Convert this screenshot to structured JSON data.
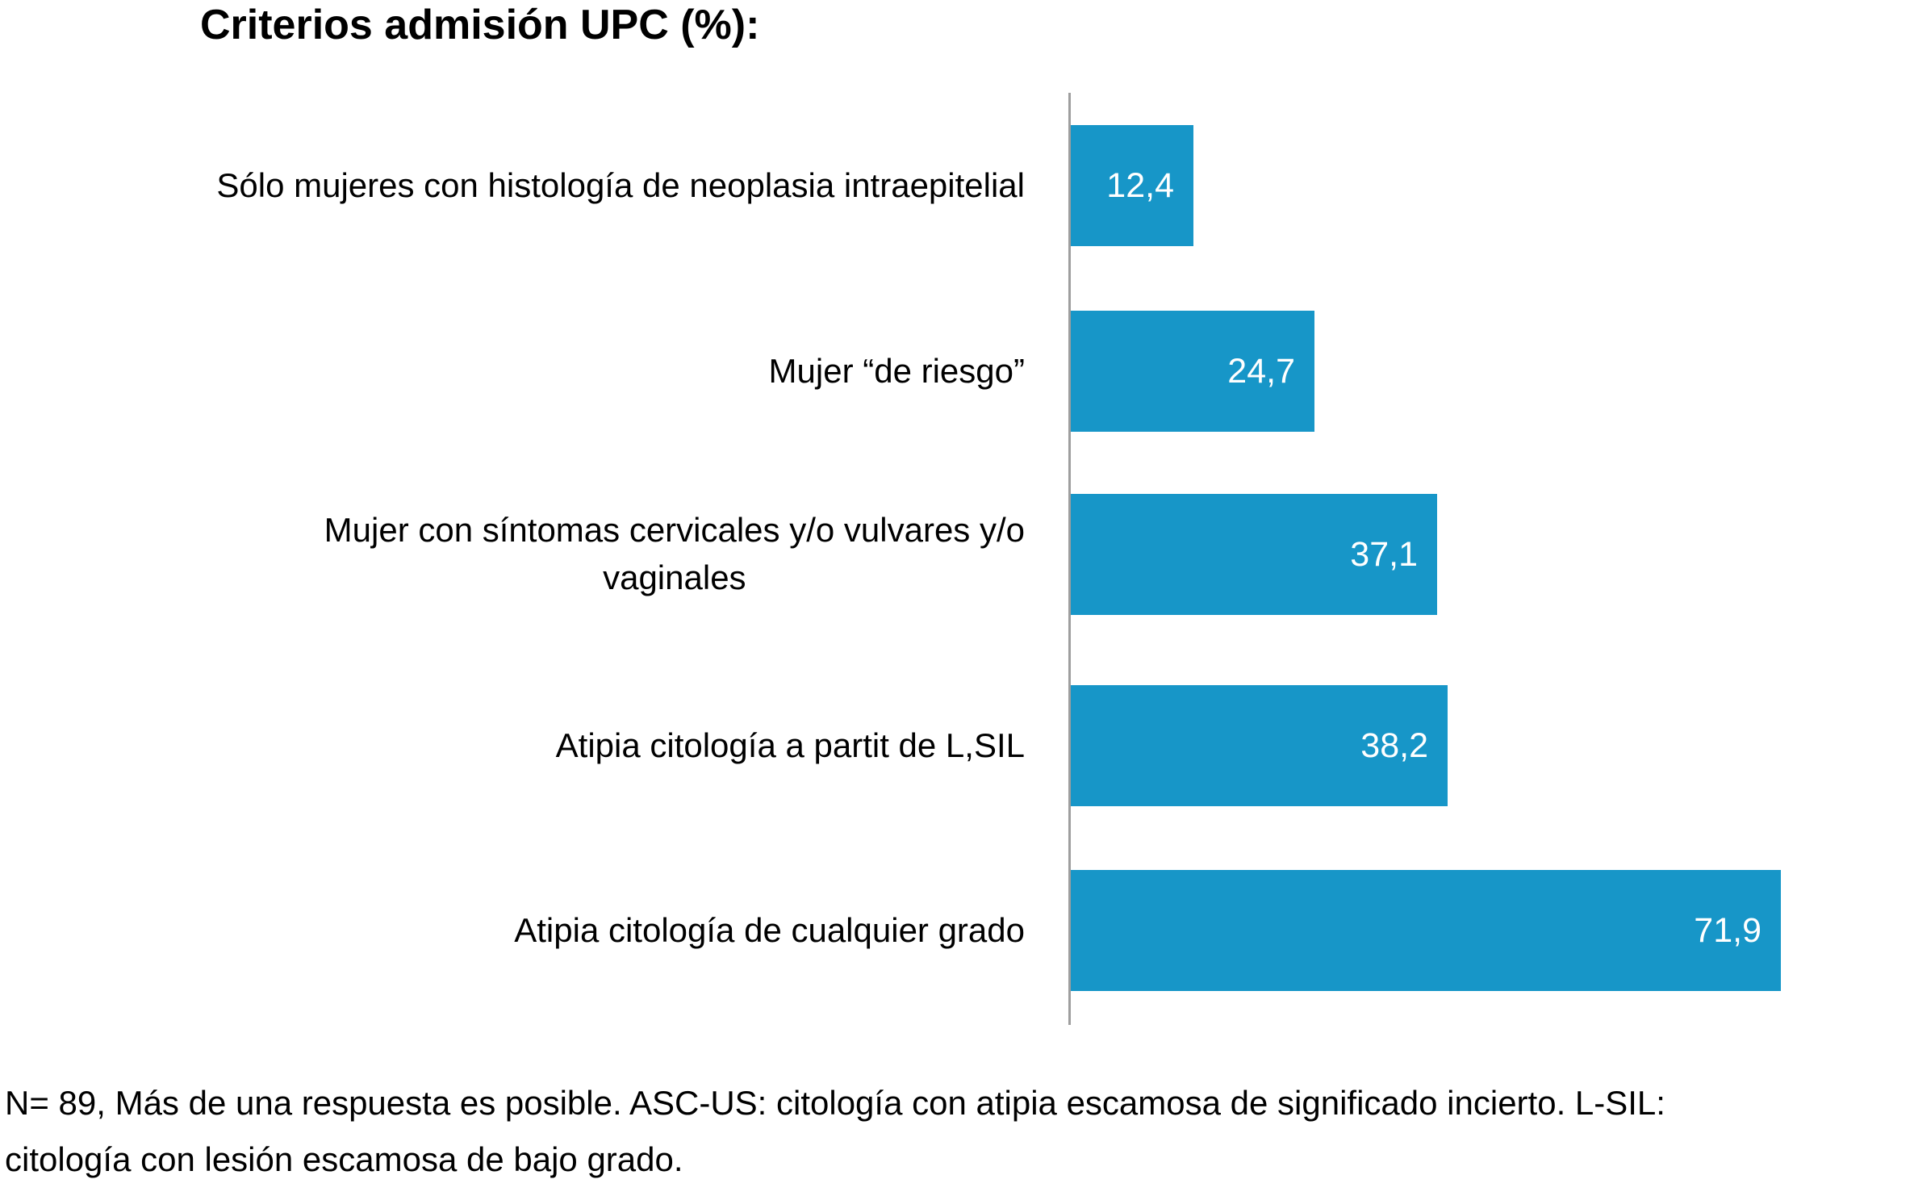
{
  "chart_data": {
    "type": "bar",
    "orientation": "horizontal",
    "title": "Criterios admisión UPC (%):",
    "categories": [
      "Sólo mujeres con histología de neoplasia intraepitelial",
      "Mujer “de riesgo”",
      "Mujer con síntomas cervicales y/o vulvares y/o\nvaginales",
      "Atipia citología a partit de L,SIL",
      "Atipia citología de cualquier grado"
    ],
    "values": [
      12.4,
      24.7,
      37.1,
      38.2,
      71.9
    ],
    "value_labels": [
      "12,4",
      "24,7",
      "37,1",
      "38,2",
      "71,9"
    ],
    "xlim": [
      0,
      85.5
    ],
    "grid": false,
    "legend": false,
    "value_labels_position": "inside-end",
    "bar_color": "#1796c8",
    "value_label_color": "#ffffff",
    "axis_line_color": "#9e9e9e",
    "note_lines": [
      "N= 89, Más de una respuesta es posible. ASC-US: citología con atipia escamosa de significado incierto. L-SIL:",
      "citología con lesión escamosa de bajo grado."
    ]
  }
}
